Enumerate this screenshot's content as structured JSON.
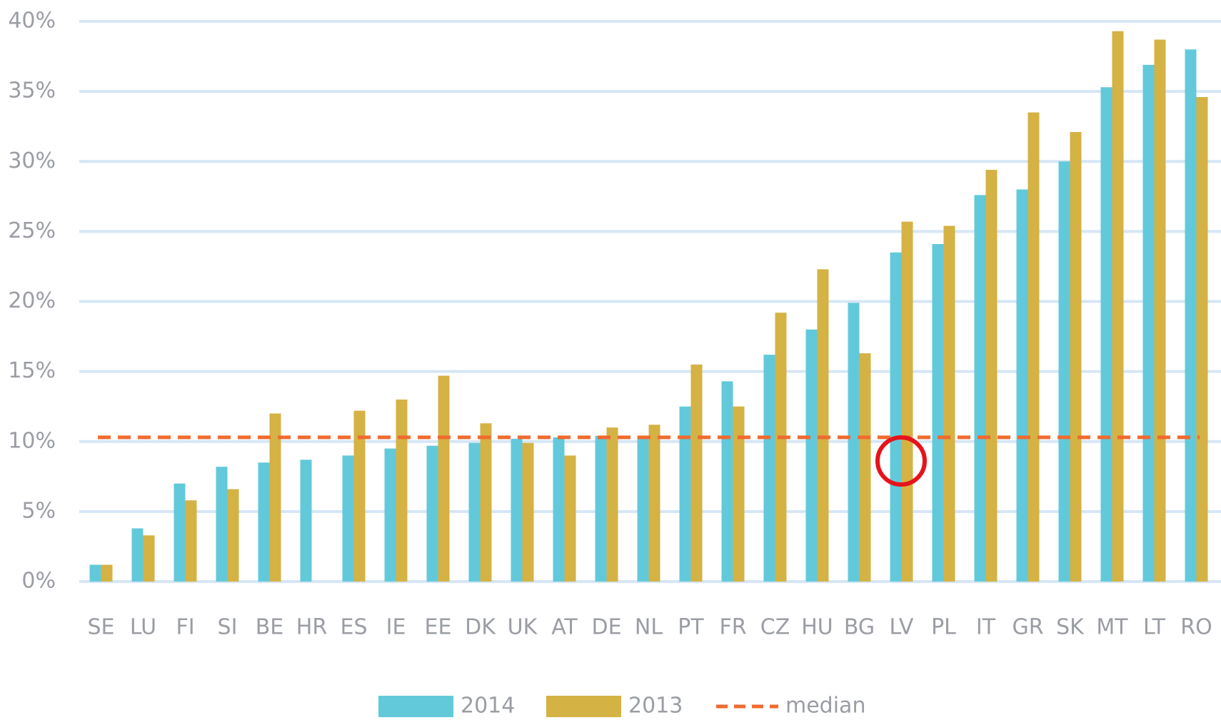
{
  "chart_data": {
    "type": "bar",
    "categories": [
      "SE",
      "LU",
      "FI",
      "SI",
      "BE",
      "HR",
      "ES",
      "IE",
      "EE",
      "DK",
      "UK",
      "AT",
      "DE",
      "NL",
      "PT",
      "FR",
      "CZ",
      "HU",
      "BG",
      "LV",
      "PL",
      "IT",
      "GR",
      "SK",
      "MT",
      "LT",
      "RO"
    ],
    "series": [
      {
        "name": "2014",
        "color": "#62c9da",
        "values": [
          1.2,
          3.8,
          7.0,
          8.2,
          8.5,
          8.7,
          9.0,
          9.5,
          9.7,
          9.9,
          10.2,
          10.3,
          10.4,
          10.4,
          12.5,
          14.3,
          16.2,
          18.0,
          19.9,
          23.5,
          24.1,
          27.6,
          28.0,
          30.0,
          35.3,
          36.9,
          38.0
        ]
      },
      {
        "name": "2013",
        "color": "#d4b244",
        "values": [
          1.2,
          3.3,
          5.8,
          6.6,
          12.0,
          null,
          12.2,
          13.0,
          14.7,
          11.3,
          9.9,
          9.0,
          11.0,
          11.2,
          15.5,
          12.5,
          19.2,
          22.3,
          16.3,
          25.7,
          25.4,
          29.4,
          33.5,
          32.1,
          39.3,
          38.7,
          34.6
        ]
      }
    ],
    "median": {
      "name": "median",
      "value": 10.3,
      "color": "#f06a2e"
    },
    "ylim": [
      0,
      40
    ],
    "yticks": [
      {
        "value": 0,
        "label": "0%"
      },
      {
        "value": 5,
        "label": "5%"
      },
      {
        "value": 10,
        "label": "10%"
      },
      {
        "value": 15,
        "label": "15%"
      },
      {
        "value": 20,
        "label": "20%"
      },
      {
        "value": 25,
        "label": "25%"
      },
      {
        "value": 30,
        "label": "30%"
      },
      {
        "value": 35,
        "label": "35%"
      },
      {
        "value": 40,
        "label": "40%"
      }
    ],
    "grid": true
  }
}
